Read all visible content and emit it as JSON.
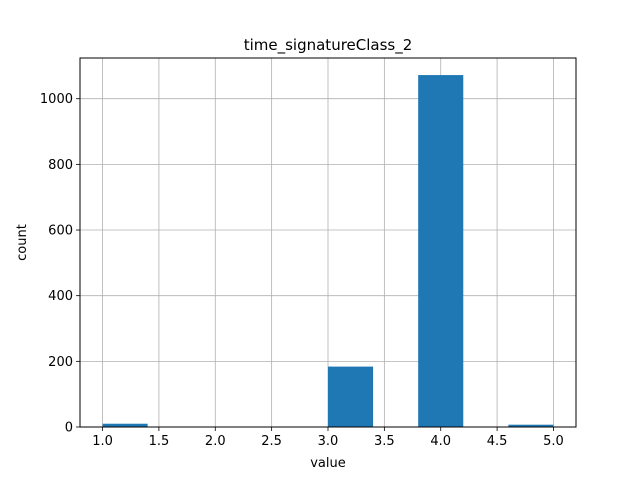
{
  "chart_data": {
    "type": "bar",
    "title": "time_signatureClass_2",
    "xlabel": "value",
    "ylabel": "count",
    "xlim": [
      0.8,
      5.2
    ],
    "ylim": [
      0,
      1124
    ],
    "x_ticks": [
      1.0,
      1.5,
      2.0,
      2.5,
      3.0,
      3.5,
      4.0,
      4.5,
      5.0
    ],
    "x_tick_labels": [
      "1.0",
      "1.5",
      "2.0",
      "2.5",
      "3.0",
      "3.5",
      "4.0",
      "4.5",
      "5.0"
    ],
    "y_ticks": [
      0,
      200,
      400,
      600,
      800,
      1000
    ],
    "y_tick_labels": [
      "0",
      "200",
      "400",
      "600",
      "800",
      "1000"
    ],
    "grid": true,
    "bar_color": "#1f77b4",
    "bins": [
      {
        "x0": 1.0,
        "x1": 1.4,
        "value": 10
      },
      {
        "x0": 1.4,
        "x1": 1.8,
        "value": 0
      },
      {
        "x0": 1.8,
        "x1": 2.2,
        "value": 0
      },
      {
        "x0": 2.2,
        "x1": 2.6,
        "value": 0
      },
      {
        "x0": 2.6,
        "x1": 3.0,
        "value": 0
      },
      {
        "x0": 3.0,
        "x1": 3.4,
        "value": 184
      },
      {
        "x0": 3.4,
        "x1": 3.8,
        "value": 0
      },
      {
        "x0": 3.8,
        "x1": 4.2,
        "value": 1072
      },
      {
        "x0": 4.2,
        "x1": 4.6,
        "value": 0
      },
      {
        "x0": 4.6,
        "x1": 5.0,
        "value": 7
      }
    ]
  }
}
